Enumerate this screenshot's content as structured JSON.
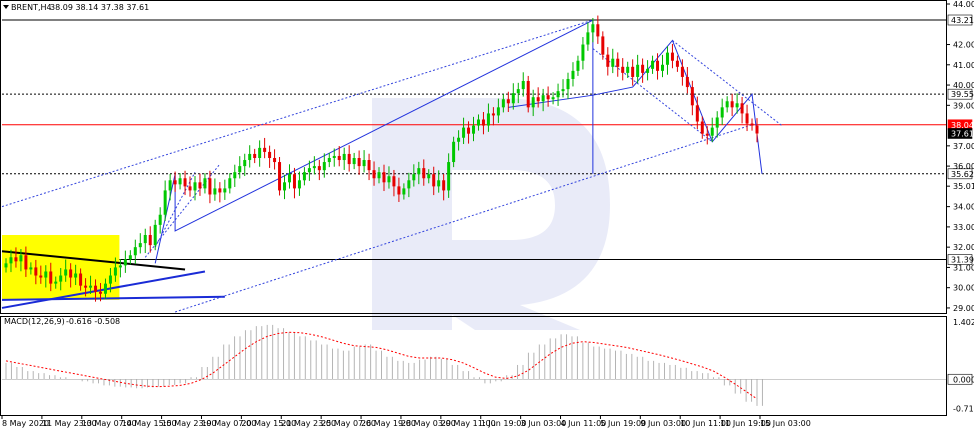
{
  "chart_data": [
    {
      "type": "candlestick",
      "title": "BRENT,H4",
      "ohlc_header": "38.09 38.14 37.38 37.61",
      "ylim": [
        28.8,
        44.0
      ],
      "y_ticks": [
        "44.00",
        "42.00",
        "41.00",
        "40.00",
        "39.00",
        "37.00",
        "36.00",
        "35.01",
        "34.00",
        "33.00",
        "32.00",
        "31.00",
        "30.00",
        "29.00"
      ],
      "x_ticks": [
        "8 May 2020",
        "11 May 23:00",
        "13 May 07:00",
        "14 May 15:00",
        "15 May 23:00",
        "19 May 07:00",
        "20 May 15:00",
        "21 May 23:00",
        "25 May 07:00",
        "26 May 19:00",
        "28 May 03:00",
        "29 May 11:00",
        "1 Jun 19:00",
        "3 Jun 03:00",
        "4 Jun 11:00",
        "5 Jun 19:00",
        "9 Jun 03:00",
        "10 Jun 11:00",
        "11 Jun 19:00",
        "15 Jun 03:00"
      ],
      "price_labels": [
        {
          "text": "43.21",
          "value": 43.21,
          "color": "#000000"
        },
        {
          "text": "39.55",
          "value": 39.55,
          "color": "#000000"
        },
        {
          "text": "38.04",
          "value": 38.04,
          "color": "#ff0000"
        },
        {
          "text": "37.61",
          "value": 37.61,
          "color": "#000000"
        },
        {
          "text": "35.62",
          "value": 35.62,
          "color": "#000000"
        },
        {
          "text": "31.39",
          "value": 31.39,
          "color": "#000000"
        }
      ],
      "horizontal_levels": [
        {
          "value": 43.21,
          "style": "solid",
          "color": "#000000"
        },
        {
          "value": 39.55,
          "style": "dotted",
          "color": "#000000"
        },
        {
          "value": 38.04,
          "style": "solid",
          "color": "#ff0000"
        },
        {
          "value": 35.62,
          "style": "dotted",
          "color": "#000000"
        },
        {
          "value": 31.39,
          "style": "solid",
          "color": "#000000"
        }
      ],
      "candles_close": [
        31.2,
        31.5,
        31.3,
        31.6,
        30.9,
        31.0,
        30.6,
        30.5,
        30.8,
        30.2,
        30.3,
        30.6,
        30.9,
        30.5,
        30.7,
        30.1,
        30.0,
        30.1,
        29.8,
        29.7,
        30.2,
        30.6,
        31.0,
        31.1,
        31.4,
        31.6,
        32.0,
        32.2,
        32.6,
        32.1,
        33.1,
        33.6,
        34.8,
        35.3,
        35.1,
        35.4,
        35.0,
        34.8,
        35.2,
        34.9,
        35.4,
        34.6,
        34.9,
        34.7,
        34.9,
        35.4,
        35.7,
        36.0,
        36.3,
        36.6,
        36.4,
        36.9,
        36.7,
        36.4,
        36.2,
        34.8,
        35.2,
        35.6,
        34.9,
        35.3,
        35.7,
        35.9,
        36.0,
        35.8,
        36.2,
        36.4,
        36.5,
        36.3,
        36.6,
        36.1,
        36.4,
        36.0,
        36.3,
        35.8,
        35.4,
        35.7,
        35.2,
        35.5,
        35.0,
        34.6,
        34.9,
        35.3,
        35.6,
        35.9,
        35.4,
        35.6,
        35.0,
        35.3,
        34.8,
        36.2,
        37.2,
        37.4,
        37.9,
        37.6,
        38.0,
        38.3,
        38.0,
        38.6,
        38.5,
        38.9,
        39.3,
        39.1,
        39.6,
        39.8,
        40.2,
        38.9,
        39.4,
        39.2,
        39.5,
        39.3,
        39.4,
        39.7,
        39.8,
        40.3,
        40.7,
        41.2,
        42.0,
        42.6,
        43.0,
        42.4,
        41.5,
        40.9,
        41.3,
        40.9,
        40.6,
        40.9,
        40.4,
        41.0,
        40.6,
        40.8,
        41.2,
        40.7,
        41.0,
        41.6,
        41.2,
        40.9,
        40.4,
        39.9,
        39.0,
        38.2,
        37.6,
        37.5,
        37.9,
        38.4,
        38.9,
        39.2,
        38.9,
        39.1,
        38.6,
        38.1,
        38.0,
        37.61
      ],
      "indicator": {
        "name": "MACD(12,26,9)",
        "header": "-0.616 -0.508",
        "ylim": [
          -0.85,
          1.45
        ],
        "y_ticks": [
          "1.402",
          "0.000",
          "-0.712"
        ],
        "histogram": [
          0.4,
          0.3,
          0.2,
          0.15,
          0.1,
          0.05,
          0.0,
          -0.05,
          -0.1,
          -0.15,
          -0.18,
          -0.2,
          -0.22,
          -0.2,
          -0.18,
          -0.14,
          -0.1,
          0.05,
          0.3,
          0.55,
          0.85,
          1.05,
          1.2,
          1.3,
          1.33,
          1.25,
          1.15,
          1.05,
          0.95,
          0.85,
          0.75,
          0.7,
          0.8,
          0.85,
          0.7,
          0.55,
          0.45,
          0.4,
          0.48,
          0.55,
          0.5,
          0.35,
          0.2,
          0.05,
          -0.1,
          -0.05,
          0.1,
          0.35,
          0.65,
          0.85,
          1.0,
          1.1,
          1.05,
          0.9,
          0.8,
          0.75,
          0.7,
          0.62,
          0.55,
          0.45,
          0.4,
          0.35,
          0.28,
          0.2,
          0.15,
          0.05,
          -0.15,
          -0.35,
          -0.55,
          -0.65
        ],
        "signal": [
          0.45,
          0.4,
          0.35,
          0.3,
          0.25,
          0.2,
          0.15,
          0.1,
          0.05,
          0.0,
          -0.05,
          -0.1,
          -0.14,
          -0.17,
          -0.18,
          -0.17,
          -0.15,
          -0.1,
          0.0,
          0.15,
          0.35,
          0.55,
          0.75,
          0.92,
          1.05,
          1.12,
          1.15,
          1.14,
          1.1,
          1.04,
          0.96,
          0.88,
          0.82,
          0.8,
          0.78,
          0.72,
          0.64,
          0.56,
          0.52,
          0.52,
          0.52,
          0.48,
          0.4,
          0.28,
          0.15,
          0.05,
          0.02,
          0.08,
          0.22,
          0.42,
          0.62,
          0.78,
          0.88,
          0.92,
          0.9,
          0.86,
          0.82,
          0.78,
          0.72,
          0.66,
          0.6,
          0.53,
          0.46,
          0.38,
          0.3,
          0.2,
          0.05,
          -0.12,
          -0.3,
          -0.48
        ]
      },
      "legend": "none",
      "grid": false
    }
  ]
}
